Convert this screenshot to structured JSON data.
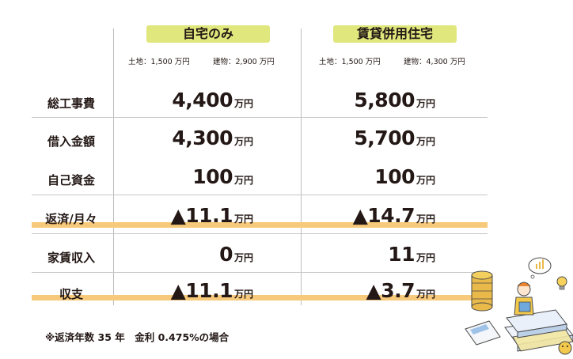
{
  "columns": [
    {
      "title": "自宅のみ",
      "land": "土地：1,500 万円",
      "building": "建物：2,900 万円"
    },
    {
      "title": "賃貸併用住宅",
      "land": "土地：1,500 万円",
      "building": "建物：4,300 万円"
    }
  ],
  "unit": "万円",
  "rows": [
    {
      "label": "総工事費",
      "v1": "4,400",
      "v2": "5,800"
    },
    {
      "label": "借入金額",
      "v1": "4,300",
      "v2": "5,700"
    },
    {
      "label": "自己資金",
      "v1": "100",
      "v2": "100"
    },
    {
      "label": "返済/月々",
      "v1": "▲11.1",
      "v2": "▲14.7"
    },
    {
      "label": "家賃収入",
      "v1": "0",
      "v2": "11"
    },
    {
      "label": "収支",
      "v1": "▲11.1",
      "v2": "▲3.7"
    }
  ],
  "footnote": "※返済年数 35 年　金利 0.475%の場合",
  "colors": {
    "title_bg": "#dfe77d",
    "highlight": "#f7c97a",
    "rule": "#c8c8c8",
    "text": "#231815"
  }
}
